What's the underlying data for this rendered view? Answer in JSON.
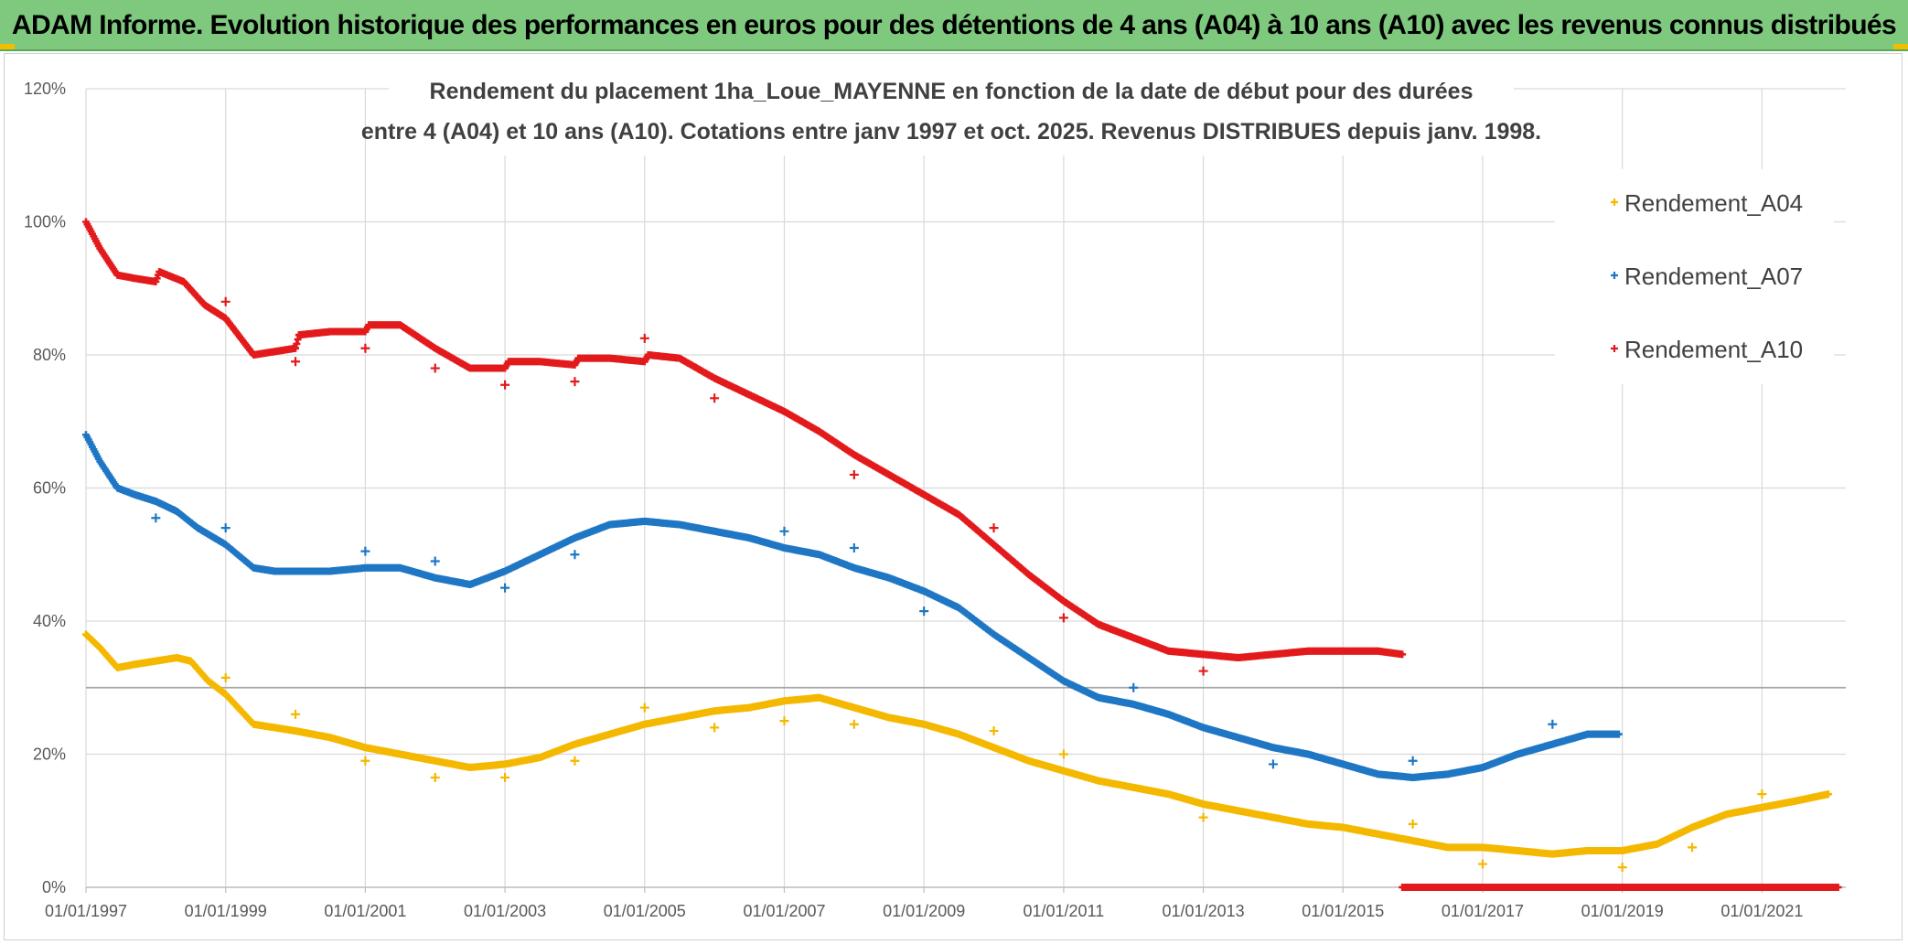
{
  "banner": {
    "title": "ADAM Informe. Evolution historique des performances en euros pour des détentions de 4 ans (A04) à 10 ans (A10) avec les revenus connus distribués"
  },
  "chart_data": {
    "type": "scatter",
    "title_lines": [
      "Rendement du placement 1ha_Loue_MAYENNE en fonction de la date de début pour des durées",
      "entre 4 (A04) et 10 ans (A10). Cotations entre janv 1997 et oct. 2025. Revenus DISTRIBUES depuis janv. 1998."
    ],
    "xlabel": "",
    "ylabel": "",
    "xlim": [
      1997.0,
      2022.2
    ],
    "ylim": [
      0,
      120
    ],
    "x_ticks": [
      1997,
      1999,
      2001,
      2003,
      2005,
      2007,
      2009,
      2011,
      2013,
      2015,
      2017,
      2019,
      2021
    ],
    "x_tick_labels": [
      "01/01/1997",
      "01/01/1999",
      "01/01/2001",
      "01/01/2003",
      "01/01/2005",
      "01/01/2007",
      "01/01/2009",
      "01/01/2011",
      "01/01/2013",
      "01/01/2015",
      "01/01/2017",
      "01/01/2019",
      "01/01/2021"
    ],
    "y_ticks": [
      0,
      20,
      40,
      60,
      80,
      100,
      120
    ],
    "y_tick_labels": [
      "0%",
      "20%",
      "40%",
      "60%",
      "80%",
      "100%",
      "120%"
    ],
    "reference_line_y": 30,
    "marker": "+",
    "legend_position": "top-right",
    "series": [
      {
        "name": "Rendement_A04",
        "color": "#f5b800",
        "points": [
          [
            1997.0,
            38
          ],
          [
            1997.2,
            36
          ],
          [
            1997.45,
            33
          ],
          [
            1997.7,
            33.5
          ],
          [
            1998.0,
            34
          ],
          [
            1998.3,
            34.5
          ],
          [
            1998.5,
            34
          ],
          [
            1998.75,
            31
          ],
          [
            1999.0,
            29
          ],
          [
            1999.4,
            24.5
          ],
          [
            1999.7,
            24
          ],
          [
            2000.0,
            23.5
          ],
          [
            2000.5,
            22.5
          ],
          [
            2001.0,
            21
          ],
          [
            2001.5,
            20
          ],
          [
            2002.0,
            19
          ],
          [
            2002.5,
            18
          ],
          [
            2003.0,
            18.5
          ],
          [
            2003.5,
            19.5
          ],
          [
            2004.0,
            21.5
          ],
          [
            2004.5,
            23
          ],
          [
            2005.0,
            24.5
          ],
          [
            2005.5,
            25.5
          ],
          [
            2006.0,
            26.5
          ],
          [
            2006.5,
            27
          ],
          [
            2007.0,
            28
          ],
          [
            2007.5,
            28.5
          ],
          [
            2008.0,
            27
          ],
          [
            2008.5,
            25.5
          ],
          [
            2009.0,
            24.5
          ],
          [
            2009.5,
            23
          ],
          [
            2010.0,
            21
          ],
          [
            2010.5,
            19
          ],
          [
            2011.0,
            17.5
          ],
          [
            2011.5,
            16
          ],
          [
            2012.0,
            15
          ],
          [
            2012.5,
            14
          ],
          [
            2013.0,
            12.5
          ],
          [
            2013.5,
            11.5
          ],
          [
            2014.0,
            10.5
          ],
          [
            2014.5,
            9.5
          ],
          [
            2015.0,
            9
          ],
          [
            2015.5,
            8
          ],
          [
            2016.0,
            7
          ],
          [
            2016.5,
            6
          ],
          [
            2017.0,
            6
          ],
          [
            2017.5,
            5.5
          ],
          [
            2018.0,
            5
          ],
          [
            2018.5,
            5.5
          ],
          [
            2019.0,
            5.5
          ],
          [
            2019.5,
            6.5
          ],
          [
            2020.0,
            9
          ],
          [
            2020.5,
            11
          ],
          [
            2021.0,
            12
          ],
          [
            2021.5,
            13
          ],
          [
            2021.95,
            14
          ]
        ],
        "outliers": [
          [
            1999.0,
            31.5
          ],
          [
            2000.0,
            26
          ],
          [
            2001.0,
            19
          ],
          [
            2002.0,
            16.5
          ],
          [
            2003.0,
            16.5
          ],
          [
            2004.0,
            19
          ],
          [
            2005.0,
            27
          ],
          [
            2006.0,
            24
          ],
          [
            2007.0,
            25
          ],
          [
            2008.0,
            24.5
          ],
          [
            2010.0,
            23.5
          ],
          [
            2011.0,
            20
          ],
          [
            2013.0,
            10.5
          ],
          [
            2016.0,
            9.5
          ],
          [
            2017.0,
            3.5
          ],
          [
            2019.0,
            3
          ],
          [
            2020.0,
            6
          ],
          [
            2021.0,
            14
          ]
        ]
      },
      {
        "name": "Rendement_A07",
        "color": "#1f77c4",
        "points": [
          [
            1997.0,
            68
          ],
          [
            1997.2,
            64
          ],
          [
            1997.45,
            60
          ],
          [
            1997.7,
            59
          ],
          [
            1998.0,
            58
          ],
          [
            1998.3,
            56.5
          ],
          [
            1998.6,
            54
          ],
          [
            1999.0,
            51.5
          ],
          [
            1999.4,
            48
          ],
          [
            1999.7,
            47.5
          ],
          [
            2000.0,
            47.5
          ],
          [
            2000.5,
            47.5
          ],
          [
            2001.0,
            48
          ],
          [
            2001.5,
            48
          ],
          [
            2002.0,
            46.5
          ],
          [
            2002.5,
            45.5
          ],
          [
            2003.0,
            47.5
          ],
          [
            2003.5,
            50
          ],
          [
            2004.0,
            52.5
          ],
          [
            2004.5,
            54.5
          ],
          [
            2005.0,
            55
          ],
          [
            2005.5,
            54.5
          ],
          [
            2006.0,
            53.5
          ],
          [
            2006.5,
            52.5
          ],
          [
            2007.0,
            51
          ],
          [
            2007.5,
            50
          ],
          [
            2008.0,
            48
          ],
          [
            2008.5,
            46.5
          ],
          [
            2009.0,
            44.5
          ],
          [
            2009.5,
            42
          ],
          [
            2010.0,
            38
          ],
          [
            2010.5,
            34.5
          ],
          [
            2011.0,
            31
          ],
          [
            2011.5,
            28.5
          ],
          [
            2012.0,
            27.5
          ],
          [
            2012.5,
            26
          ],
          [
            2013.0,
            24
          ],
          [
            2013.5,
            22.5
          ],
          [
            2014.0,
            21
          ],
          [
            2014.5,
            20
          ],
          [
            2015.0,
            18.5
          ],
          [
            2015.5,
            17
          ],
          [
            2016.0,
            16.5
          ],
          [
            2016.5,
            17
          ],
          [
            2017.0,
            18
          ],
          [
            2017.5,
            20
          ],
          [
            2018.0,
            21.5
          ],
          [
            2018.5,
            23
          ],
          [
            2018.95,
            23
          ]
        ],
        "outliers": [
          [
            1998.0,
            55.5
          ],
          [
            1999.0,
            54
          ],
          [
            2001.0,
            50.5
          ],
          [
            2002.0,
            49
          ],
          [
            2003.0,
            45
          ],
          [
            2004.0,
            50
          ],
          [
            2007.0,
            53.5
          ],
          [
            2008.0,
            51
          ],
          [
            2009.0,
            41.5
          ],
          [
            2012.0,
            30
          ],
          [
            2014.0,
            18.5
          ],
          [
            2016.0,
            19
          ],
          [
            2018.0,
            24.5
          ]
        ]
      },
      {
        "name": "Rendement_A10",
        "color": "#e31a1c",
        "points": [
          [
            1997.0,
            100
          ],
          [
            1997.2,
            96
          ],
          [
            1997.45,
            92
          ],
          [
            1997.7,
            91.5
          ],
          [
            1998.0,
            91
          ],
          [
            1998.05,
            92.5
          ],
          [
            1998.4,
            91
          ],
          [
            1998.7,
            87.5
          ],
          [
            1999.0,
            85.5
          ],
          [
            1999.4,
            80
          ],
          [
            1999.7,
            80.5
          ],
          [
            2000.0,
            81
          ],
          [
            2000.05,
            83
          ],
          [
            2000.5,
            83.5
          ],
          [
            2001.0,
            83.5
          ],
          [
            2001.05,
            84.5
          ],
          [
            2001.5,
            84.5
          ],
          [
            2002.0,
            81
          ],
          [
            2002.5,
            78
          ],
          [
            2003.0,
            78
          ],
          [
            2003.05,
            79
          ],
          [
            2003.5,
            79
          ],
          [
            2004.0,
            78.5
          ],
          [
            2004.05,
            79.5
          ],
          [
            2004.5,
            79.5
          ],
          [
            2005.0,
            79
          ],
          [
            2005.05,
            80
          ],
          [
            2005.5,
            79.5
          ],
          [
            2006.0,
            76.5
          ],
          [
            2006.5,
            74
          ],
          [
            2007.0,
            71.5
          ],
          [
            2007.5,
            68.5
          ],
          [
            2008.0,
            65
          ],
          [
            2008.5,
            62
          ],
          [
            2009.0,
            59
          ],
          [
            2009.5,
            56
          ],
          [
            2010.0,
            51.5
          ],
          [
            2010.5,
            47
          ],
          [
            2011.0,
            43
          ],
          [
            2011.5,
            39.5
          ],
          [
            2012.0,
            37.5
          ],
          [
            2012.5,
            35.5
          ],
          [
            2013.0,
            35
          ],
          [
            2013.5,
            34.5
          ],
          [
            2014.0,
            35
          ],
          [
            2014.5,
            35.5
          ],
          [
            2015.0,
            35.5
          ],
          [
            2015.5,
            35.5
          ],
          [
            2015.85,
            35
          ]
        ],
        "outliers": [
          [
            1999.0,
            88
          ],
          [
            2000.0,
            79
          ],
          [
            2001.0,
            81
          ],
          [
            2002.0,
            78
          ],
          [
            2003.0,
            75.5
          ],
          [
            2004.0,
            76
          ],
          [
            2005.0,
            82.5
          ],
          [
            2006.0,
            73.5
          ],
          [
            2008.0,
            62
          ],
          [
            2010.0,
            54
          ],
          [
            2011.0,
            40.5
          ],
          [
            2013.0,
            32.5
          ]
        ],
        "zero_run": {
          "from": 2015.85,
          "to": 2022.1,
          "value": 0
        }
      }
    ]
  }
}
